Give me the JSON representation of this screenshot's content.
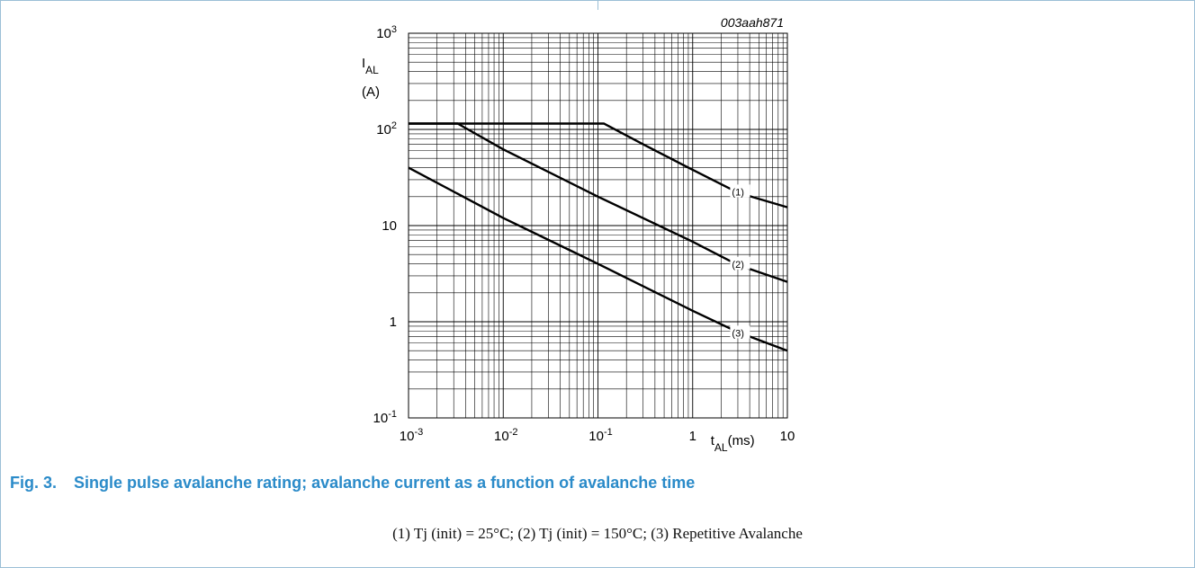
{
  "figure": {
    "id_code": "003aah871",
    "number": "Fig. 3.",
    "caption": "Single pulse avalanche rating; avalanche current as a function of avalanche time",
    "note": "(1) Tj (init) = 25°C;  (2) Tj (init) = 150°C;  (3) Repetitive Avalanche"
  },
  "colors": {
    "caption": "#2b8bc9",
    "frame_border": "#9bbfd6",
    "grid": "#000000",
    "curve": "#000000"
  },
  "chart_data": {
    "type": "line",
    "x_scale": "log",
    "y_scale": "log",
    "xlim": [
      0.001,
      10
    ],
    "ylim": [
      0.1,
      1000
    ],
    "grid": true,
    "ylabel": {
      "main": "I",
      "sub": "AL",
      "unit": "(A)"
    },
    "xlabel": {
      "main": "t",
      "sub": "AL",
      "unit": "(ms)"
    },
    "x_ticks": [
      {
        "value": 0.001,
        "base": "10",
        "exp": "-3"
      },
      {
        "value": 0.01,
        "base": "10",
        "exp": "-2"
      },
      {
        "value": 0.1,
        "base": "10",
        "exp": "-1"
      },
      {
        "value": 1,
        "base": "1",
        "exp": ""
      },
      {
        "value": 10,
        "base": "10",
        "exp": ""
      }
    ],
    "y_ticks": [
      {
        "value": 0.1,
        "base": "10",
        "exp": "-1"
      },
      {
        "value": 1,
        "base": "1",
        "exp": ""
      },
      {
        "value": 10,
        "base": "10",
        "exp": ""
      },
      {
        "value": 100,
        "base": "10",
        "exp": "2"
      },
      {
        "value": 1000,
        "base": "10",
        "exp": "3"
      }
    ],
    "series": [
      {
        "label": "(1)",
        "x": [
          0.001,
          0.116,
          0.3,
          1,
          3,
          10
        ],
        "y": [
          115,
          115,
          70,
          38,
          22,
          15.5
        ],
        "label_at": {
          "x": 2.6,
          "y": 22
        }
      },
      {
        "label": "(2)",
        "x": [
          0.001,
          0.0033,
          0.01,
          0.1,
          1,
          3,
          10
        ],
        "y": [
          115,
          115,
          62,
          20,
          6.8,
          3.9,
          2.6
        ],
        "label_at": {
          "x": 2.6,
          "y": 3.9
        }
      },
      {
        "label": "(3)",
        "x": [
          0.001,
          0.01,
          0.1,
          1,
          3,
          10
        ],
        "y": [
          40,
          12,
          4,
          1.3,
          0.78,
          0.5
        ],
        "label_at": {
          "x": 2.6,
          "y": 0.75
        }
      }
    ]
  }
}
